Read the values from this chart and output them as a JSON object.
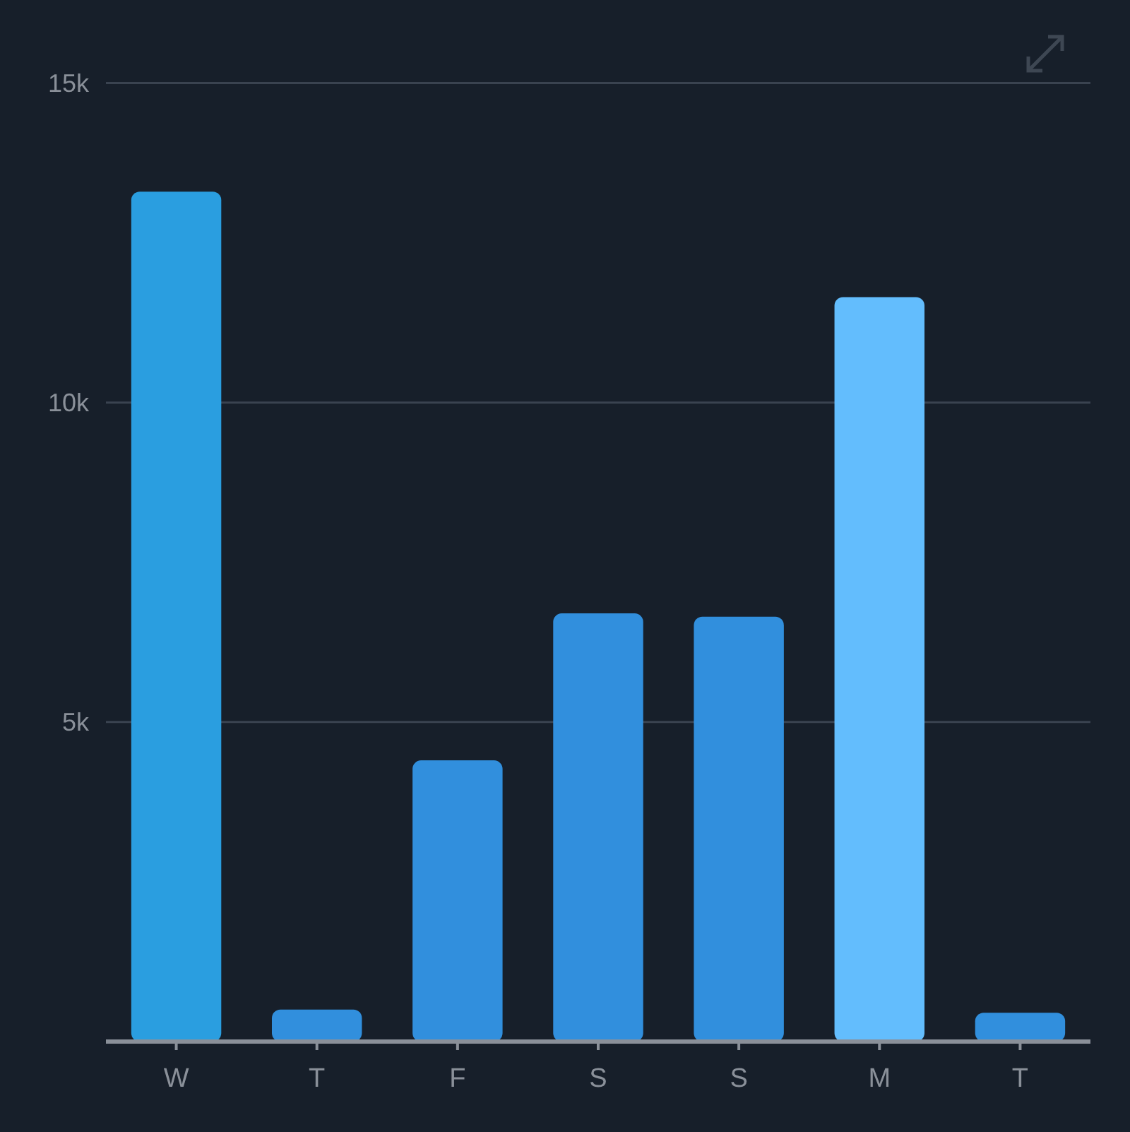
{
  "chart_data": {
    "type": "bar",
    "categories": [
      "W",
      "T",
      "F",
      "S",
      "S",
      "M",
      "T"
    ],
    "values": [
      13300,
      500,
      4400,
      6700,
      6650,
      11650,
      450
    ],
    "colors": [
      "#2a9ee0",
      "#318fdd",
      "#318fdd",
      "#318fdd",
      "#318fdd",
      "#63bdfd",
      "#318fdd"
    ],
    "ylim": [
      0,
      16300
    ],
    "yticks": [
      {
        "value": 5000,
        "label": "5k"
      },
      {
        "value": 10000,
        "label": "10k"
      },
      {
        "value": 15000,
        "label": "15k"
      }
    ],
    "grid": "y"
  }
}
